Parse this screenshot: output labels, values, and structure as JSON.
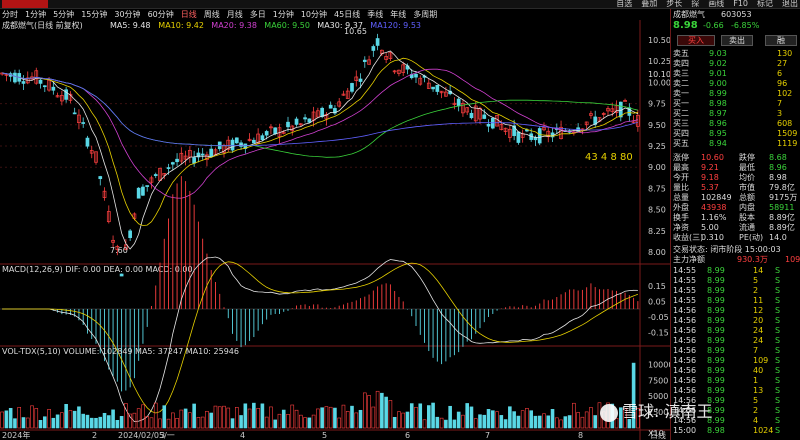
{
  "topbar": {
    "menu": [
      "自选",
      "叠加",
      "步长",
      "探",
      "画线",
      "F10",
      "标记",
      "退出"
    ]
  },
  "tabs": [
    "分时",
    "1分钟",
    "5分钟",
    "15分钟",
    "30分钟",
    "60分钟",
    "日线",
    "周线",
    "月线",
    "多日",
    "1分钟",
    "10分钟",
    "45日线",
    "季线",
    "年线",
    "多周期"
  ],
  "active_tab": "日线",
  "ma_legend": {
    "name": "成都燃气(日线 前复权)",
    "items": [
      {
        "label": "MA5: 9.48",
        "color": "#e6e6e6"
      },
      {
        "label": "MA10: 9.42",
        "color": "#e6d000"
      },
      {
        "label": "MA20: 9.38",
        "color": "#d040d0"
      },
      {
        "label": "MA60: 9.50",
        "color": "#3ad23a"
      },
      {
        "label": "MA30: 9.37",
        "color": "#e6e6e6"
      },
      {
        "label": "MA120: 9.53",
        "color": "#6060ff"
      }
    ]
  },
  "price_axis": [
    "10.50",
    "10.25",
    "10.00",
    "9.75",
    "9.50",
    "9.25",
    "9.00",
    "8.75",
    "8.50",
    "8.25",
    "8.00"
  ],
  "price_labels": {
    "high": "10.65",
    "low": "7.60",
    "right_value": "10.10",
    "annot": "43 4 8 80"
  },
  "macd_legend": {
    "text": "MACD(12,26,9)  DIF: 0.00  DEA: 0.00  MACD: 0.00"
  },
  "macd_axis": [
    "0.15",
    "0.05",
    "-0.05",
    "-0.15"
  ],
  "vol_legend": {
    "text": "VOL-TDX(5,10)  VOLUME: 102849  MA5: 37247  MA10: 25946"
  },
  "vol_axis": [
    "10000",
    "7500",
    "5000",
    "2500"
  ],
  "vol_unit": "X10",
  "date_axis": [
    "2024年",
    "2",
    "2024/02/05/一",
    "3",
    "4",
    "5",
    "6",
    "7",
    "8"
  ],
  "bottom_tab": "日线",
  "stock": {
    "name": "成都燃气",
    "code": "603053",
    "price": "8.98",
    "change": "-0.66",
    "pct": "-6.85%"
  },
  "panel_buttons": [
    "买入",
    "卖出",
    "融"
  ],
  "orderbook": {
    "asks": [
      {
        "label": "卖五",
        "price": "9.03",
        "vol": "130"
      },
      {
        "label": "卖四",
        "price": "9.02",
        "vol": "27"
      },
      {
        "label": "卖三",
        "price": "9.01",
        "vol": "6"
      },
      {
        "label": "卖二",
        "price": "9.00",
        "vol": "96"
      },
      {
        "label": "卖一",
        "price": "8.99",
        "vol": "102"
      }
    ],
    "bids": [
      {
        "label": "买一",
        "price": "8.98",
        "vol": "7"
      },
      {
        "label": "买二",
        "price": "8.97",
        "vol": "3"
      },
      {
        "label": "买三",
        "price": "8.96",
        "vol": "608"
      },
      {
        "label": "买四",
        "price": "8.95",
        "vol": "1509"
      },
      {
        "label": "买五",
        "price": "8.94",
        "vol": "1119"
      }
    ]
  },
  "stats": [
    {
      "l1": "涨停",
      "v1": "10.60",
      "c1": "c-red",
      "l2": "跌停",
      "v2": "8.68",
      "c2": "c-green"
    },
    {
      "l1": "最高",
      "v1": "9.21",
      "c1": "c-red",
      "l2": "最低",
      "v2": "8.96",
      "c2": "c-green"
    },
    {
      "l1": "今开",
      "v1": "9.18",
      "c1": "c-red",
      "l2": "均价",
      "v2": "8.98",
      "c2": "c-white"
    },
    {
      "l1": "量比",
      "v1": "5.37",
      "c1": "c-red",
      "l2": "市值",
      "v2": "79.8亿",
      "c2": "c-white"
    },
    {
      "l1": "总量",
      "v1": "102849",
      "c1": "c-white",
      "l2": "总额",
      "v2": "9175万",
      "c2": "c-white"
    },
    {
      "l1": "外盘",
      "v1": "43938",
      "c1": "c-red",
      "l2": "内盘",
      "v2": "58911",
      "c2": "c-green"
    },
    {
      "l1": "换手",
      "v1": "1.16%",
      "c1": "c-white",
      "l2": "股本",
      "v2": "8.89亿",
      "c2": "c-white"
    },
    {
      "l1": "净资",
      "v1": "5.00",
      "c1": "c-white",
      "l2": "流通",
      "v2": "8.89亿",
      "c2": "c-white"
    },
    {
      "l1": "收益(三)",
      "v1": "0.310",
      "c1": "c-white",
      "l2": "PE(动)",
      "v2": "14.0",
      "c2": "c-white"
    }
  ],
  "trade_status": "交易状态: 闭市阶段 15:00:03",
  "main_flow": {
    "label": "主力净额",
    "value": "930.3万",
    "extra": "109"
  },
  "ticks": [
    {
      "t": "14:55",
      "p": "8.99",
      "v": "14",
      "s": "S"
    },
    {
      "t": "14:55",
      "p": "8.99",
      "v": "5",
      "s": "S"
    },
    {
      "t": "14:55",
      "p": "8.99",
      "v": "2",
      "s": "S"
    },
    {
      "t": "14:55",
      "p": "8.99",
      "v": "11",
      "s": "S"
    },
    {
      "t": "14:56",
      "p": "8.99",
      "v": "12",
      "s": "S"
    },
    {
      "t": "14:56",
      "p": "8.99",
      "v": "20",
      "s": "S"
    },
    {
      "t": "14:56",
      "p": "8.99",
      "v": "24",
      "s": "S"
    },
    {
      "t": "14:56",
      "p": "8.99",
      "v": "24",
      "s": "S"
    },
    {
      "t": "14:56",
      "p": "8.99",
      "v": "7",
      "s": "S"
    },
    {
      "t": "14:56",
      "p": "8.99",
      "v": "109",
      "s": "S"
    },
    {
      "t": "14:56",
      "p": "8.99",
      "v": "40",
      "s": "S"
    },
    {
      "t": "14:56",
      "p": "8.99",
      "v": "1",
      "s": "S"
    },
    {
      "t": "14:56",
      "p": "8.99",
      "v": "13",
      "s": "S"
    },
    {
      "t": "14:56",
      "p": "8.99",
      "v": "5",
      "s": "S"
    },
    {
      "t": "14:56",
      "p": "8.99",
      "v": "2",
      "s": "S"
    },
    {
      "t": "14:56",
      "p": "8.99",
      "v": "4",
      "s": "S"
    },
    {
      "t": "15:00",
      "p": "8.98",
      "v": "1024",
      "s": "S"
    }
  ],
  "watermark": "雪球: 滇南王"
}
